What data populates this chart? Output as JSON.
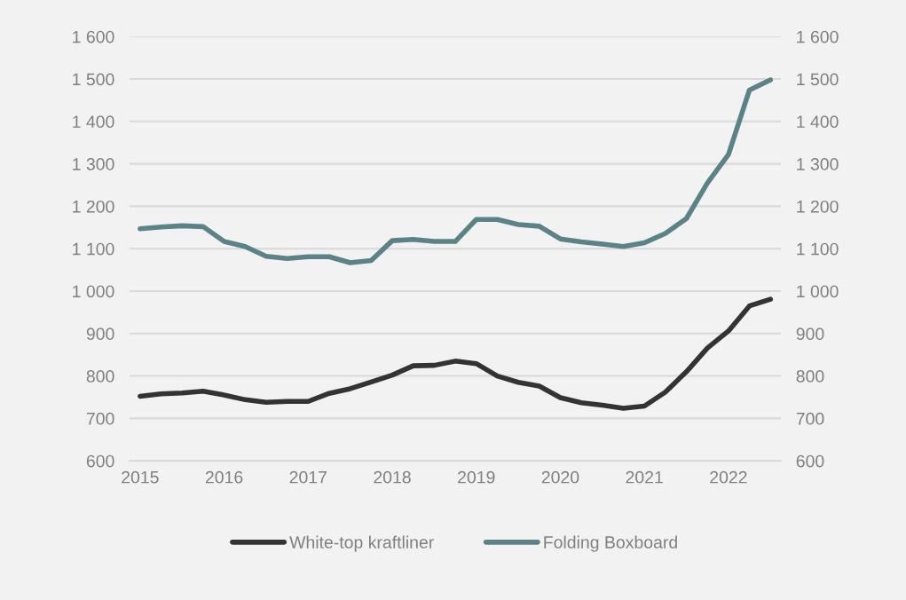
{
  "chart_data": {
    "type": "line",
    "categories": [
      "2015",
      null,
      null,
      null,
      "2016",
      null,
      null,
      null,
      "2017",
      null,
      null,
      null,
      "2018",
      null,
      null,
      null,
      "2019",
      null,
      null,
      null,
      "2020",
      null,
      null,
      null,
      "2021",
      null,
      null,
      null,
      "2022",
      null,
      null
    ],
    "series": [
      {
        "name": "White-top kraftliner",
        "color": "#333333",
        "values": [
          752,
          758,
          760,
          764,
          755,
          744,
          738,
          740,
          740,
          759,
          770,
          786,
          802,
          824,
          825,
          835,
          829,
          800,
          785,
          776,
          749,
          737,
          731,
          724,
          729,
          762,
          810,
          866,
          906,
          965,
          981
        ]
      },
      {
        "name": "Folding Boxboard",
        "color": "#5b8387",
        "values": [
          1147,
          1151,
          1154,
          1152,
          1117,
          1105,
          1082,
          1077,
          1081,
          1081,
          1067,
          1072,
          1119,
          1122,
          1117,
          1117,
          1169,
          1169,
          1157,
          1153,
          1123,
          1116,
          1111,
          1105,
          1114,
          1136,
          1171,
          1255,
          1322,
          1474,
          1498
        ]
      }
    ],
    "ylim": [
      600,
      1600
    ],
    "yticks": [
      600,
      700,
      800,
      900,
      {
        "value": 1000,
        "label": "1 000"
      },
      {
        "value": 1100,
        "label": "1 100"
      },
      {
        "value": 1200,
        "label": "1 200"
      },
      {
        "value": 1300,
        "label": "1 300"
      },
      {
        "value": 1400,
        "label": "1 400"
      },
      {
        "value": 1500,
        "label": "1 500"
      },
      {
        "value": 1600,
        "label": "1 600"
      }
    ],
    "y2lim": [
      600,
      1600
    ],
    "y2ticks": [
      600,
      700,
      800,
      900,
      {
        "value": 1000,
        "label": "1 000"
      },
      {
        "value": 1100,
        "label": "1 100"
      },
      {
        "value": 1200,
        "label": "1 200"
      },
      {
        "value": 1300,
        "label": "1 300"
      },
      {
        "value": 1400,
        "label": "1 400"
      },
      {
        "value": 1500,
        "label": "1 500"
      },
      {
        "value": 1600,
        "label": "1 600"
      }
    ],
    "grid": "y",
    "legend": "bottom",
    "marker": "none",
    "line_style": "solid"
  }
}
